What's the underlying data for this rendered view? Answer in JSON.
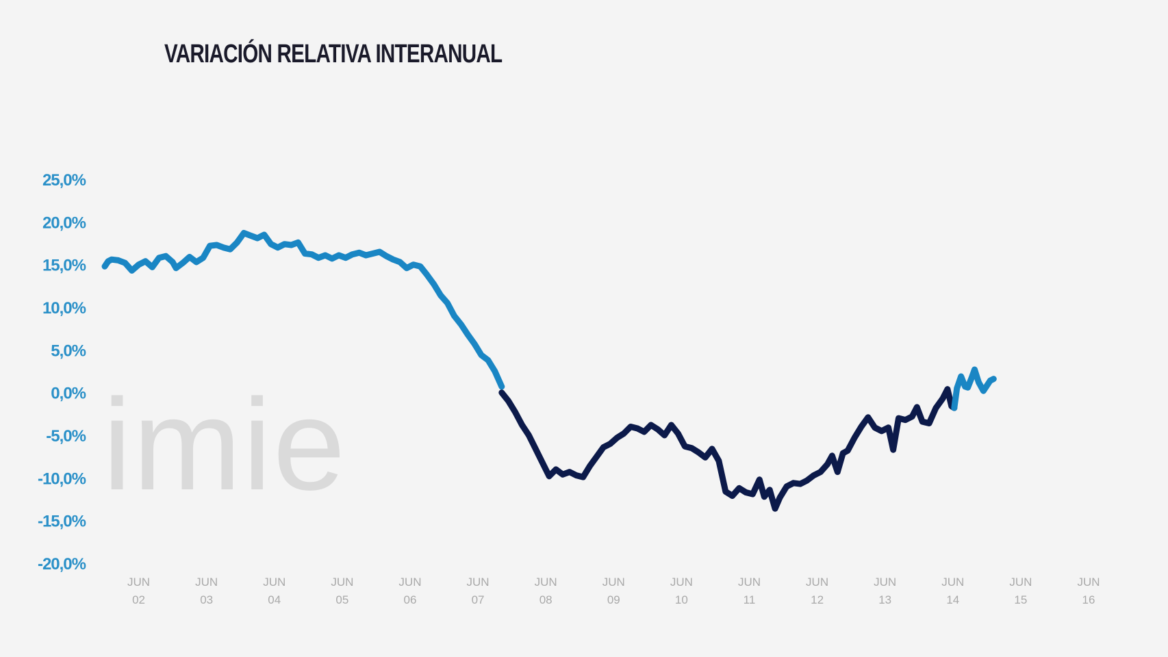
{
  "title": "VARIACIÓN RELATIVA INTERANUAL",
  "watermark": "imie",
  "colors": {
    "background": "#f4f4f4",
    "rising_series": "#1a86c4",
    "falling_series": "#0c1a4a",
    "tick_label": "#2a90c8",
    "x_label": "#a9a9a9",
    "title": "#1a1a2a",
    "watermark": "#dadada"
  },
  "chart_data": {
    "type": "line",
    "title": "VARIACIÓN RELATIVA INTERANUAL",
    "xlabel": "",
    "ylabel": "",
    "ylim": [
      -20,
      25
    ],
    "xlim": [
      2002.0,
      2016.5
    ],
    "grid": false,
    "legend": "none",
    "y_ticks": [
      "25,0%",
      "20,0%",
      "15,0%",
      "10,0%",
      "5,0%",
      "0,0%",
      "-5,0%",
      "-10,0%",
      "-15,0%",
      "-20,0%"
    ],
    "y_tick_values": [
      25,
      20,
      15,
      10,
      5,
      0,
      -5,
      -10,
      -15,
      -20
    ],
    "x_tick_values": [
      2002.5,
      2003.5,
      2004.5,
      2005.5,
      2006.5,
      2007.5,
      2008.5,
      2009.5,
      2010.5,
      2011.5,
      2012.5,
      2013.5,
      2014.5,
      2015.5,
      2016.5
    ],
    "x_ticks": [
      [
        "JUN",
        "02"
      ],
      [
        "JUN",
        "03"
      ],
      [
        "JUN",
        "04"
      ],
      [
        "JUN",
        "05"
      ],
      [
        "JUN",
        "06"
      ],
      [
        "JUN",
        "07"
      ],
      [
        "JUN",
        "08"
      ],
      [
        "JUN",
        "09"
      ],
      [
        "JUN",
        "10"
      ],
      [
        "JUN",
        "11"
      ],
      [
        "JUN",
        "12"
      ],
      [
        "JUN",
        "13"
      ],
      [
        "JUN",
        "14"
      ],
      [
        "JUN",
        "15"
      ],
      [
        "JUN",
        "16"
      ]
    ],
    "series": [
      {
        "color": "#1a86c4",
        "points": [
          [
            2002.0,
            14.8
          ],
          [
            2002.05,
            15.4
          ],
          [
            2002.1,
            15.6
          ],
          [
            2002.2,
            15.5
          ],
          [
            2002.3,
            15.2
          ],
          [
            2002.4,
            14.3
          ],
          [
            2002.5,
            15.0
          ],
          [
            2002.6,
            15.4
          ],
          [
            2002.7,
            14.7
          ],
          [
            2002.8,
            15.8
          ],
          [
            2002.9,
            16.0
          ],
          [
            2003.0,
            15.3
          ],
          [
            2003.05,
            14.6
          ],
          [
            2003.15,
            15.2
          ],
          [
            2003.25,
            15.9
          ],
          [
            2003.35,
            15.3
          ],
          [
            2003.45,
            15.8
          ],
          [
            2003.55,
            17.2
          ],
          [
            2003.65,
            17.3
          ],
          [
            2003.75,
            17.0
          ],
          [
            2003.85,
            16.8
          ],
          [
            2003.95,
            17.6
          ],
          [
            2004.05,
            18.7
          ],
          [
            2004.15,
            18.4
          ],
          [
            2004.25,
            18.1
          ],
          [
            2004.35,
            18.5
          ],
          [
            2004.45,
            17.4
          ],
          [
            2004.55,
            17.0
          ],
          [
            2004.65,
            17.4
          ],
          [
            2004.75,
            17.3
          ],
          [
            2004.85,
            17.6
          ],
          [
            2004.95,
            16.3
          ],
          [
            2005.05,
            16.2
          ],
          [
            2005.15,
            15.8
          ],
          [
            2005.25,
            16.1
          ],
          [
            2005.35,
            15.7
          ],
          [
            2005.45,
            16.1
          ],
          [
            2005.55,
            15.8
          ],
          [
            2005.65,
            16.2
          ],
          [
            2005.75,
            16.4
          ],
          [
            2005.85,
            16.1
          ],
          [
            2005.95,
            16.3
          ],
          [
            2006.05,
            16.5
          ],
          [
            2006.15,
            16.0
          ],
          [
            2006.25,
            15.6
          ],
          [
            2006.35,
            15.3
          ],
          [
            2006.45,
            14.6
          ],
          [
            2006.55,
            15.0
          ],
          [
            2006.65,
            14.8
          ],
          [
            2006.75,
            13.8
          ],
          [
            2006.85,
            12.7
          ],
          [
            2006.95,
            11.4
          ],
          [
            2007.05,
            10.5
          ],
          [
            2007.15,
            9.0
          ],
          [
            2007.25,
            8.0
          ],
          [
            2007.35,
            6.8
          ],
          [
            2007.45,
            5.7
          ],
          [
            2007.55,
            4.4
          ],
          [
            2007.65,
            3.8
          ],
          [
            2007.75,
            2.5
          ],
          [
            2007.85,
            0.7
          ]
        ]
      },
      {
        "color": "#0c1a4a",
        "points": [
          [
            2007.85,
            0.0
          ],
          [
            2007.95,
            -1.0
          ],
          [
            2008.05,
            -2.3
          ],
          [
            2008.15,
            -3.8
          ],
          [
            2008.25,
            -5.0
          ],
          [
            2008.35,
            -6.6
          ],
          [
            2008.45,
            -8.2
          ],
          [
            2008.55,
            -9.8
          ],
          [
            2008.65,
            -9.0
          ],
          [
            2008.75,
            -9.6
          ],
          [
            2008.85,
            -9.3
          ],
          [
            2008.95,
            -9.7
          ],
          [
            2009.05,
            -9.9
          ],
          [
            2009.15,
            -8.6
          ],
          [
            2009.25,
            -7.5
          ],
          [
            2009.35,
            -6.4
          ],
          [
            2009.45,
            -6.0
          ],
          [
            2009.55,
            -5.3
          ],
          [
            2009.65,
            -4.8
          ],
          [
            2009.75,
            -4.0
          ],
          [
            2009.85,
            -4.2
          ],
          [
            2009.95,
            -4.6
          ],
          [
            2010.05,
            -3.8
          ],
          [
            2010.15,
            -4.3
          ],
          [
            2010.25,
            -5.0
          ],
          [
            2010.35,
            -3.8
          ],
          [
            2010.45,
            -4.8
          ],
          [
            2010.55,
            -6.3
          ],
          [
            2010.65,
            -6.5
          ],
          [
            2010.75,
            -7.0
          ],
          [
            2010.85,
            -7.6
          ],
          [
            2010.95,
            -6.6
          ],
          [
            2011.05,
            -8.0
          ],
          [
            2011.15,
            -11.6
          ],
          [
            2011.25,
            -12.1
          ],
          [
            2011.35,
            -11.2
          ],
          [
            2011.45,
            -11.7
          ],
          [
            2011.55,
            -11.9
          ],
          [
            2011.65,
            -10.2
          ],
          [
            2011.72,
            -12.2
          ],
          [
            2011.8,
            -11.4
          ],
          [
            2011.88,
            -13.6
          ],
          [
            2011.95,
            -12.3
          ],
          [
            2012.05,
            -11.0
          ],
          [
            2012.15,
            -10.6
          ],
          [
            2012.25,
            -10.7
          ],
          [
            2012.35,
            -10.3
          ],
          [
            2012.45,
            -9.7
          ],
          [
            2012.55,
            -9.3
          ],
          [
            2012.65,
            -8.4
          ],
          [
            2012.72,
            -7.4
          ],
          [
            2012.8,
            -9.3
          ],
          [
            2012.88,
            -7.1
          ],
          [
            2012.95,
            -6.8
          ],
          [
            2013.05,
            -5.3
          ],
          [
            2013.15,
            -4.0
          ],
          [
            2013.25,
            -2.9
          ],
          [
            2013.35,
            -4.1
          ],
          [
            2013.45,
            -4.5
          ],
          [
            2013.55,
            -4.1
          ],
          [
            2013.62,
            -6.7
          ],
          [
            2013.7,
            -3.0
          ],
          [
            2013.8,
            -3.2
          ],
          [
            2013.9,
            -2.8
          ],
          [
            2013.97,
            -1.7
          ],
          [
            2014.05,
            -3.4
          ],
          [
            2014.15,
            -3.6
          ],
          [
            2014.25,
            -1.8
          ],
          [
            2014.35,
            -0.7
          ],
          [
            2014.42,
            0.4
          ],
          [
            2014.48,
            -1.6
          ],
          [
            2014.52,
            -1.8
          ]
        ]
      },
      {
        "color": "#1a86c4",
        "points": [
          [
            2014.52,
            -1.8
          ],
          [
            2014.56,
            0.5
          ],
          [
            2014.62,
            1.9
          ],
          [
            2014.68,
            0.7
          ],
          [
            2014.72,
            0.6
          ],
          [
            2014.78,
            1.8
          ],
          [
            2014.82,
            2.7
          ],
          [
            2014.88,
            1.2
          ],
          [
            2014.95,
            0.2
          ],
          [
            2015.05,
            1.4
          ],
          [
            2015.1,
            1.6
          ]
        ]
      }
    ]
  }
}
